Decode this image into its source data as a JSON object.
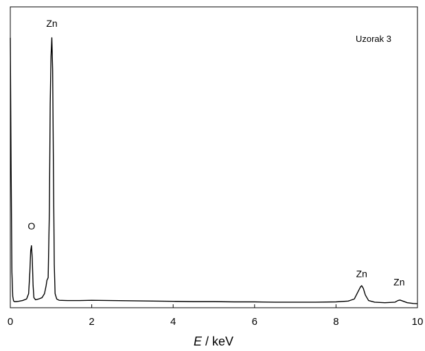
{
  "chart_data": {
    "type": "line",
    "xlim": [
      0,
      10
    ],
    "ylim": [
      0,
      1.02
    ],
    "x_ticks": [
      "0",
      "2",
      "4",
      "6",
      "8",
      "10"
    ],
    "x_tick_values": [
      0,
      2,
      4,
      6,
      8,
      10
    ],
    "xlabel_symbol": "E",
    "xlabel_unit": " / keV",
    "ylabel": "",
    "grid": false,
    "sample_label": "Uzorak 3",
    "annotations": [
      {
        "text": "O",
        "x": 0.52,
        "y": 0.24
      },
      {
        "text": "Zn",
        "x": 1.02,
        "y": 1.0
      },
      {
        "text": "Zn",
        "x": 8.63,
        "y": 0.06
      },
      {
        "text": "Zn",
        "x": 9.55,
        "y": 0.03
      }
    ],
    "series": [
      {
        "x": [
          0.0,
          0.02,
          0.04,
          0.06,
          0.08,
          0.1,
          0.14,
          0.2,
          0.3,
          0.4,
          0.45,
          0.48,
          0.5,
          0.52,
          0.54,
          0.56,
          0.58,
          0.62,
          0.7,
          0.78,
          0.84,
          0.88,
          0.9,
          0.93,
          0.96,
          0.98,
          1.0,
          1.02,
          1.04,
          1.06,
          1.08,
          1.1,
          1.14,
          1.2,
          1.4,
          1.7,
          2.0,
          2.5,
          3.0,
          3.5,
          4.0,
          4.5,
          5.0,
          5.5,
          6.0,
          6.5,
          7.0,
          7.5,
          8.0,
          8.3,
          8.45,
          8.55,
          8.6,
          8.63,
          8.67,
          8.72,
          8.8,
          8.95,
          9.2,
          9.45,
          9.52,
          9.57,
          9.64,
          9.75,
          9.9,
          10.0
        ],
        "y": [
          1.0,
          0.5,
          0.12,
          0.03,
          0.013,
          0.01,
          0.01,
          0.011,
          0.014,
          0.02,
          0.04,
          0.12,
          0.2,
          0.22,
          0.17,
          0.07,
          0.025,
          0.017,
          0.02,
          0.025,
          0.04,
          0.07,
          0.09,
          0.1,
          0.35,
          0.75,
          0.93,
          1.0,
          0.88,
          0.5,
          0.15,
          0.04,
          0.02,
          0.015,
          0.014,
          0.014,
          0.015,
          0.014,
          0.013,
          0.012,
          0.011,
          0.01,
          0.01,
          0.009,
          0.009,
          0.008,
          0.008,
          0.008,
          0.009,
          0.012,
          0.02,
          0.05,
          0.065,
          0.07,
          0.06,
          0.035,
          0.014,
          0.008,
          0.006,
          0.008,
          0.014,
          0.016,
          0.012,
          0.006,
          0.003,
          0.002
        ]
      }
    ]
  }
}
